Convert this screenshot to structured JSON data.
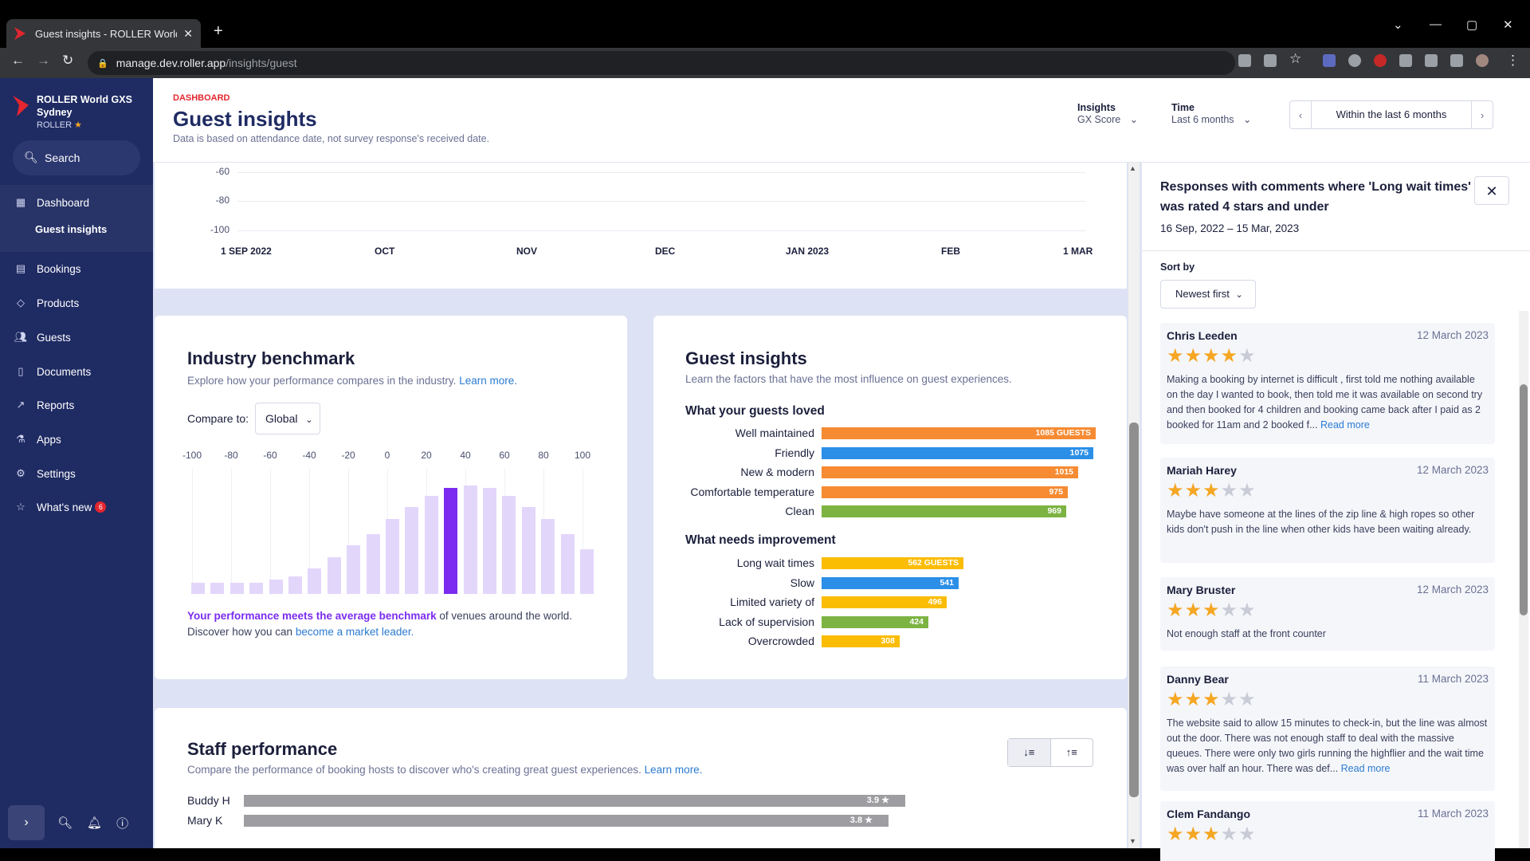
{
  "browser": {
    "tab_title": "Guest insights - ROLLER World G",
    "url_host": "manage.dev.roller.app",
    "url_path": "/insights/guest"
  },
  "sidebar": {
    "venue_line1": "ROLLER World GXS",
    "venue_line2": "Sydney",
    "venue_sub": "ROLLER",
    "search": "Search",
    "items": [
      {
        "label": "Dashboard",
        "icon": "dashboard-icon"
      },
      {
        "label": "Guest insights",
        "icon": ""
      },
      {
        "label": "Bookings",
        "icon": "calendar-icon"
      },
      {
        "label": "Products",
        "icon": "tag-icon"
      },
      {
        "label": "Guests",
        "icon": "people-icon"
      },
      {
        "label": "Documents",
        "icon": "document-icon"
      },
      {
        "label": "Reports",
        "icon": "trend-icon"
      },
      {
        "label": "Apps",
        "icon": "apps-icon"
      },
      {
        "label": "Settings",
        "icon": "gear-icon"
      },
      {
        "label": "What's new",
        "icon": "star-icon",
        "badge": "6"
      }
    ]
  },
  "header": {
    "crumb": "DASHBOARD",
    "title": "Guest insights",
    "subtitle": "Data is based on attendance date, not survey response's received date.",
    "insights_label": "Insights",
    "insights_value": "GX Score",
    "time_label": "Time",
    "time_value": "Last 6 months",
    "range": "Within the last 6 months"
  },
  "trend_chart": {
    "y_ticks": [
      "-60",
      "-80",
      "-100"
    ],
    "x_ticks": [
      "1 SEP 2022",
      "OCT",
      "NOV",
      "DEC",
      "JAN 2023",
      "FEB",
      "1 MAR"
    ]
  },
  "benchmark": {
    "title": "Industry benchmark",
    "desc": "Explore how your performance compares in the industry.",
    "learn": "Learn more.",
    "compare_label": "Compare to:",
    "compare_value": "Global",
    "ticks": [
      "-100",
      "-80",
      "-60",
      "-40",
      "-20",
      "0",
      "20",
      "40",
      "60",
      "80",
      "100"
    ],
    "bar_heights": [
      0.09,
      0.09,
      0.09,
      0.09,
      0.11,
      0.14,
      0.2,
      0.29,
      0.38,
      0.47,
      0.59,
      0.68,
      0.77,
      0.83,
      0.85,
      0.83,
      0.77,
      0.68,
      0.59,
      0.47,
      0.35
    ],
    "highlight_index": 13,
    "result_bold": "Your performance meets the average benchmark",
    "result_rest": " of venues around the world.",
    "discover": "Discover how you can ",
    "discover_link": "become a market leader."
  },
  "guest_insights": {
    "title": "Guest insights",
    "desc": "Learn the factors that have the most influence on guest experiences.",
    "loved_title": "What your guests loved",
    "loved": [
      {
        "label": "Well maintained",
        "value": 1085,
        "text": "1085 GUESTS",
        "color": "#f68b33"
      },
      {
        "label": "Friendly",
        "value": 1075,
        "text": "1075",
        "color": "#2b8fe8"
      },
      {
        "label": "New & modern",
        "value": 1015,
        "text": "1015",
        "color": "#f68b33"
      },
      {
        "label": "Comfortable temperature",
        "value": 975,
        "text": "975",
        "color": "#f68b33"
      },
      {
        "label": "Clean",
        "value": 969,
        "text": "969",
        "color": "#7cb342"
      }
    ],
    "improve_title": "What needs improvement",
    "improve": [
      {
        "label": "Long wait times",
        "value": 562,
        "text": "562 GUESTS",
        "color": "#fbbc04"
      },
      {
        "label": "Slow",
        "value": 541,
        "text": "541",
        "color": "#2b8fe8"
      },
      {
        "label": "Limited variety of",
        "value": 496,
        "text": "496",
        "color": "#fbbc04"
      },
      {
        "label": "Lack of supervision",
        "value": 424,
        "text": "424",
        "color": "#7cb342"
      },
      {
        "label": "Overcrowded",
        "value": 308,
        "text": "308",
        "color": "#fbbc04"
      }
    ]
  },
  "staff": {
    "title": "Staff performance",
    "desc": "Compare the performance of booking hosts to discover who's creating great guest experiences.",
    "learn": "Learn more.",
    "rows": [
      {
        "name": "Buddy H",
        "score": 3.9,
        "text": "3.9 ★"
      },
      {
        "name": "Mary K",
        "score": 3.8,
        "text": "3.8 ★"
      }
    ]
  },
  "responses": {
    "title": "Responses with comments where 'Long wait times' was rated 4 stars and under",
    "dates": "16 Sep, 2022 – 15 Mar, 2023",
    "sort_label": "Sort by",
    "sort_value": "Newest first",
    "read_more": "Read more",
    "items": [
      {
        "name": "Chris Leeden",
        "date": "12 March 2023",
        "stars": 4,
        "text": "Making a booking by internet is difficult , first told me nothing available on the day I wanted to book, then told me it was available on second try and then booked for 4 children and booking came back after I paid as 2 booked for 11am and 2 booked f...",
        "more": true
      },
      {
        "name": "Mariah Harey",
        "date": "12 March 2023",
        "stars": 3,
        "text": "Maybe have someone at the lines of the zip line & high ropes so other kids don't push in the line when other kids have been waiting already.",
        "more": false
      },
      {
        "name": "Mary Bruster",
        "date": "12 March 2023",
        "stars": 3,
        "text": "Not enough staff at the front counter",
        "more": false
      },
      {
        "name": "Danny Bear",
        "date": "11 March 2023",
        "stars": 3,
        "text": "The website said to allow 15 minutes to check-in, but the line was almost out the door. There was not enough staff to deal with the massive queues. There were only two girls running the highflier and the wait time was over half an hour. There was def...",
        "more": true
      },
      {
        "name": "Clem Fandango",
        "date": "11 March 2023",
        "stars": 3,
        "text": "",
        "more": false
      }
    ]
  }
}
